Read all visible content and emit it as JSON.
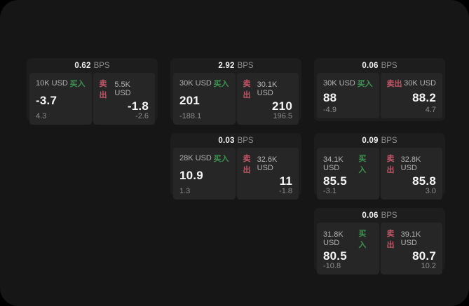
{
  "app": {
    "outside_color": "#000000",
    "background_color": "#161617",
    "card_color": "#1d1d1e",
    "panel_color": "#262627",
    "buy_color": "#3f9150",
    "sell_color": "#c25666"
  },
  "labels": {
    "buy": "买入",
    "sell": "卖出",
    "spread_unit": "BPS"
  },
  "cards": [
    {
      "row": 1,
      "col": 1,
      "spread": "0.62",
      "buy": {
        "amount": "10K USD",
        "price": "-3.7",
        "sub": "4.3"
      },
      "sell": {
        "amount": "5.5K USD",
        "price": "-1.8",
        "sub": "-2.6"
      }
    },
    {
      "row": 1,
      "col": 2,
      "spread": "2.92",
      "buy": {
        "amount": "30K USD",
        "price": "201",
        "sub": "-188.1"
      },
      "sell": {
        "amount": "30.1K USD",
        "price": "210",
        "sub": "196.5"
      }
    },
    {
      "row": 1,
      "col": 3,
      "spread": "0.06",
      "buy": {
        "amount": "30K USD",
        "price": "88",
        "sub": "-4.9"
      },
      "sell": {
        "amount": "30K USD",
        "price": "88.2",
        "sub": "4.7"
      }
    },
    {
      "row": 2,
      "col": 2,
      "spread": "0.03",
      "buy": {
        "amount": "28K USD",
        "price": "10.9",
        "sub": "1.3"
      },
      "sell": {
        "amount": "32.6K USD",
        "price": "11",
        "sub": "-1.8"
      }
    },
    {
      "row": 2,
      "col": 3,
      "spread": "0.09",
      "buy": {
        "amount": "34.1K USD",
        "price": "85.5",
        "sub": "-3.1"
      },
      "sell": {
        "amount": "32.8K USD",
        "price": "85.8",
        "sub": "3.0"
      }
    },
    {
      "row": 3,
      "col": 3,
      "spread": "0.06",
      "buy": {
        "amount": "31.8K USD",
        "price": "80.5",
        "sub": "-10.8"
      },
      "sell": {
        "amount": "39.1K USD",
        "price": "80.7",
        "sub": "10.2"
      }
    }
  ]
}
